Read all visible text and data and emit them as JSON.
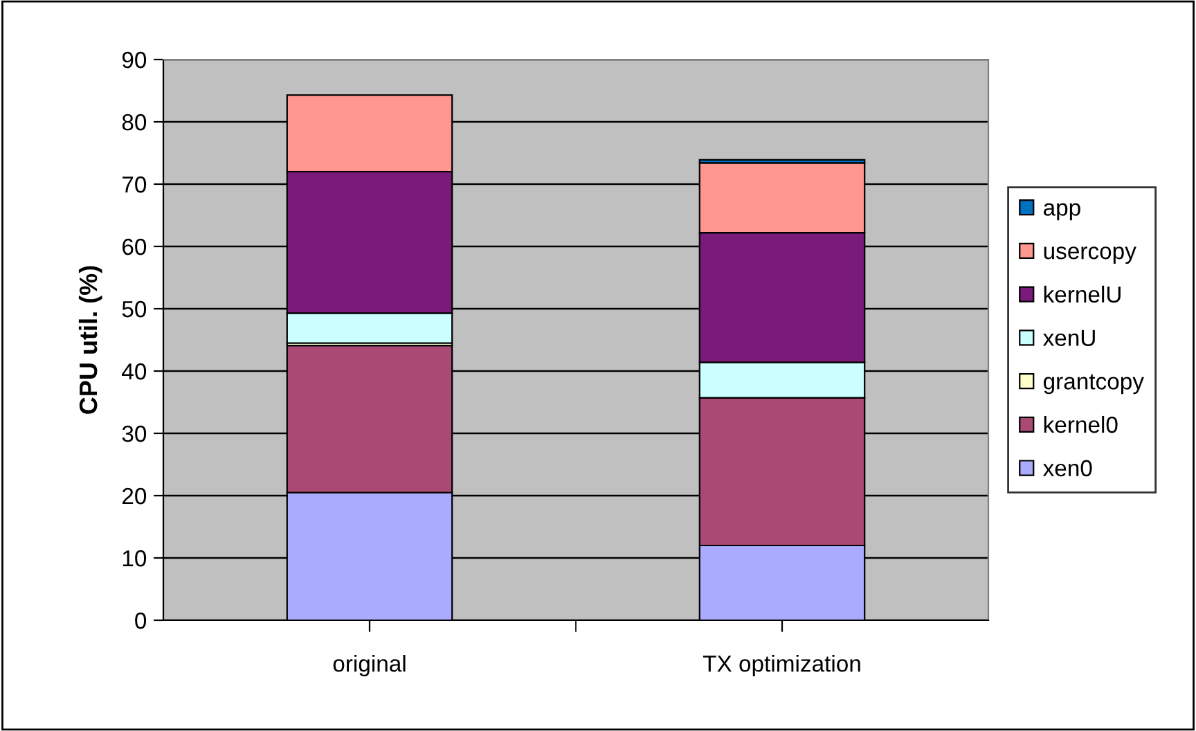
{
  "chart_data": {
    "type": "bar",
    "stacked": true,
    "ylabel": "CPU util. (%)",
    "categories": [
      "original",
      "TX optimization"
    ],
    "series": [
      {
        "name": "xen0",
        "color": "#aaaaff",
        "values": [
          20.5,
          12.0
        ]
      },
      {
        "name": "kernel0",
        "color": "#aa4a74",
        "values": [
          23.6,
          23.7
        ]
      },
      {
        "name": "grantcopy",
        "color": "#ffffcc",
        "values": [
          0.4,
          0.0
        ]
      },
      {
        "name": "xenU",
        "color": "#ccffff",
        "values": [
          4.8,
          5.7
        ]
      },
      {
        "name": "kernelU",
        "color": "#7a1a7a",
        "values": [
          22.7,
          20.8
        ]
      },
      {
        "name": "usercopy",
        "color": "#ff9690",
        "values": [
          12.3,
          11.2
        ]
      },
      {
        "name": "app",
        "color": "#0070c0",
        "values": [
          null,
          0.5
        ]
      }
    ],
    "ylim": [
      0,
      90
    ],
    "yticks": [
      0,
      10,
      20,
      30,
      40,
      50,
      60,
      70,
      80,
      90
    ],
    "grid": "y",
    "legend": "right"
  }
}
